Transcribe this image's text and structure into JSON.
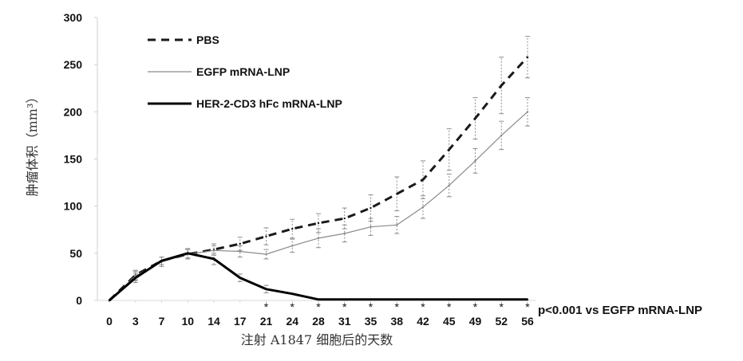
{
  "chart_data": {
    "type": "line",
    "xlabel": "注射 A1847 细胞后的天数",
    "ylabel": "肿瘤体积（mm³）",
    "ylim": [
      0,
      300
    ],
    "yticks": [
      0,
      50,
      100,
      150,
      200,
      250,
      300
    ],
    "categories": [
      "0",
      "3",
      "7",
      "10",
      "14",
      "17",
      "21",
      "24",
      "28",
      "31",
      "35",
      "38",
      "42",
      "45",
      "49",
      "52",
      "56"
    ],
    "legend_position": "top-left",
    "grid": false,
    "annotation": "p<0.001 vs EGFP mRNA-LNP",
    "significance_marker": "*",
    "significance_from_index": 6,
    "series": [
      {
        "name": "PBS",
        "style": "dashed",
        "color": "#1a1a1a",
        "values": [
          0,
          27,
          42,
          49,
          54,
          60,
          68,
          76,
          82,
          87,
          98,
          113,
          128,
          160,
          193,
          228,
          258
        ],
        "errors": [
          0,
          5,
          4,
          5,
          6,
          7,
          9,
          10,
          10,
          11,
          14,
          18,
          20,
          22,
          22,
          30,
          22
        ]
      },
      {
        "name": "EGFP mRNA-LNP",
        "style": "solid-thin",
        "color": "#8a8a8a",
        "values": [
          0,
          26,
          41,
          49,
          53,
          52,
          49,
          58,
          66,
          71,
          78,
          80,
          99,
          122,
          148,
          175,
          200
        ],
        "errors": [
          0,
          5,
          5,
          5,
          5,
          6,
          5,
          7,
          10,
          9,
          9,
          9,
          12,
          12,
          13,
          15,
          15
        ]
      },
      {
        "name": "HER-2-CD3 hFc mRNA-LNP",
        "style": "solid-thick",
        "color": "#000000",
        "values": [
          0,
          24,
          42,
          50,
          44,
          24,
          12,
          7,
          1,
          1,
          1,
          1,
          1,
          1,
          1,
          1,
          1
        ],
        "errors": [
          0,
          5,
          4,
          5,
          6,
          4,
          4,
          0,
          0,
          0,
          0,
          0,
          0,
          0,
          0,
          0,
          0
        ]
      }
    ]
  }
}
